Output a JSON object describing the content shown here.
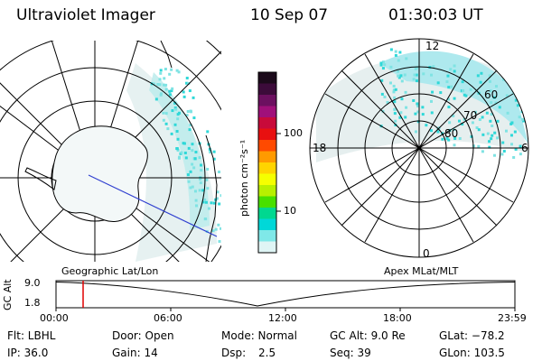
{
  "header": {
    "instrument": "Ultraviolet Imager",
    "date": "10 Sep 07",
    "time": "01:30:03 UT"
  },
  "colorbar": {
    "unit_label": "photon cm⁻²s⁻¹",
    "ticks": [
      "100",
      "10"
    ],
    "colors": [
      "#1b0a1a",
      "#3c0b3a",
      "#6c1060",
      "#a0107a",
      "#c80a3a",
      "#e81010",
      "#ff4a00",
      "#ff9a00",
      "#ffd400",
      "#f5ff00",
      "#b8f000",
      "#48e000",
      "#00d890",
      "#00d8d8",
      "#7fe8e8",
      "#dff5f5"
    ]
  },
  "geo_map": {
    "title": "Geographic Lat/Lon"
  },
  "polar_plot": {
    "title": "Apex MLat/MLT",
    "mlt_labels": {
      "top": "12",
      "left": "18",
      "right": "6",
      "bottom": "0"
    },
    "mlat_labels": [
      "60",
      "70",
      "80"
    ]
  },
  "altitude_plot": {
    "ylabel": "GC Alt",
    "y_ticks": [
      "9.0",
      "1.8"
    ],
    "x_ticks": [
      "00:00",
      "06:00",
      "12:00",
      "18:00",
      "23:59"
    ],
    "marker_color": "#e00000"
  },
  "footer": {
    "filter": "Flt: LBHL",
    "door": "Door: Open",
    "mode": "Mode: Normal",
    "gc_alt": "GC Alt: 9.0 Re",
    "glat": "GLat: −78.2",
    "ip": "IP: 36.0",
    "gain": "Gain: 14",
    "dsp_label": "Dsp:",
    "dsp_value": "2.5",
    "seq": "Seq: 39",
    "glon": "GLon: 103.5"
  }
}
